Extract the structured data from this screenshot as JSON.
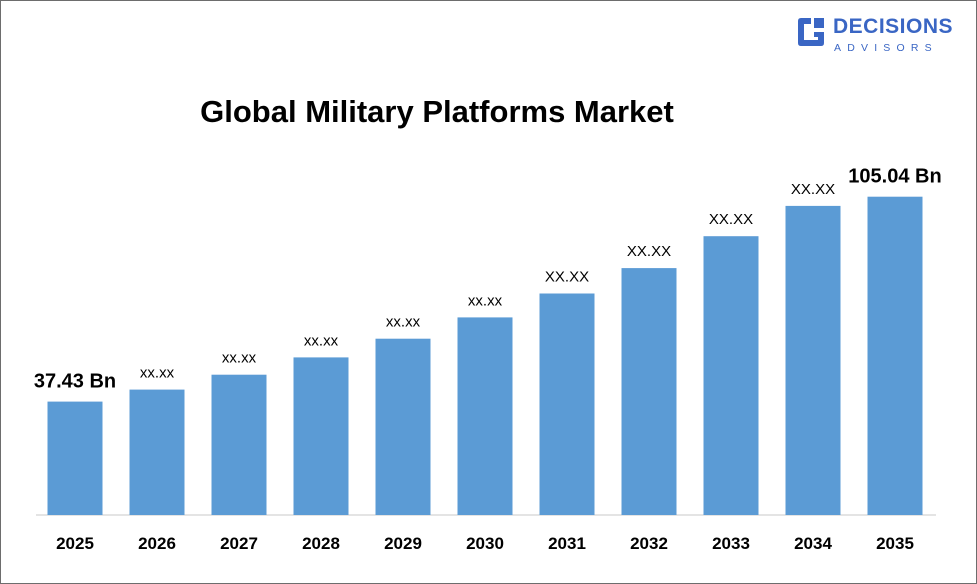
{
  "brand": {
    "name_line1": "DECISIONS",
    "name_line2": "ADVISORS",
    "color": "#3a66c4"
  },
  "chart_data": {
    "type": "bar",
    "title": "Global Military Platforms Market",
    "xlabel": "",
    "ylabel": "",
    "categories": [
      "2025",
      "2026",
      "2027",
      "2028",
      "2029",
      "2030",
      "2031",
      "2032",
      "2033",
      "2034",
      "2035"
    ],
    "values": [
      37.43,
      41.4,
      46.3,
      52.0,
      58.2,
      65.2,
      73.1,
      81.5,
      92.0,
      102.0,
      105.04
    ],
    "data_labels": [
      "37.43 Bn",
      "xx.xx",
      "xx.xx",
      "xx.xx",
      "xx.xx",
      "xx.xx",
      "XX.XX",
      "XX.XX",
      "XX.XX",
      "XX.XX",
      "105.04 Bn"
    ],
    "bar_color": "#5b9bd5",
    "ylim": [
      0,
      120
    ],
    "grid": false,
    "legend": "none"
  }
}
